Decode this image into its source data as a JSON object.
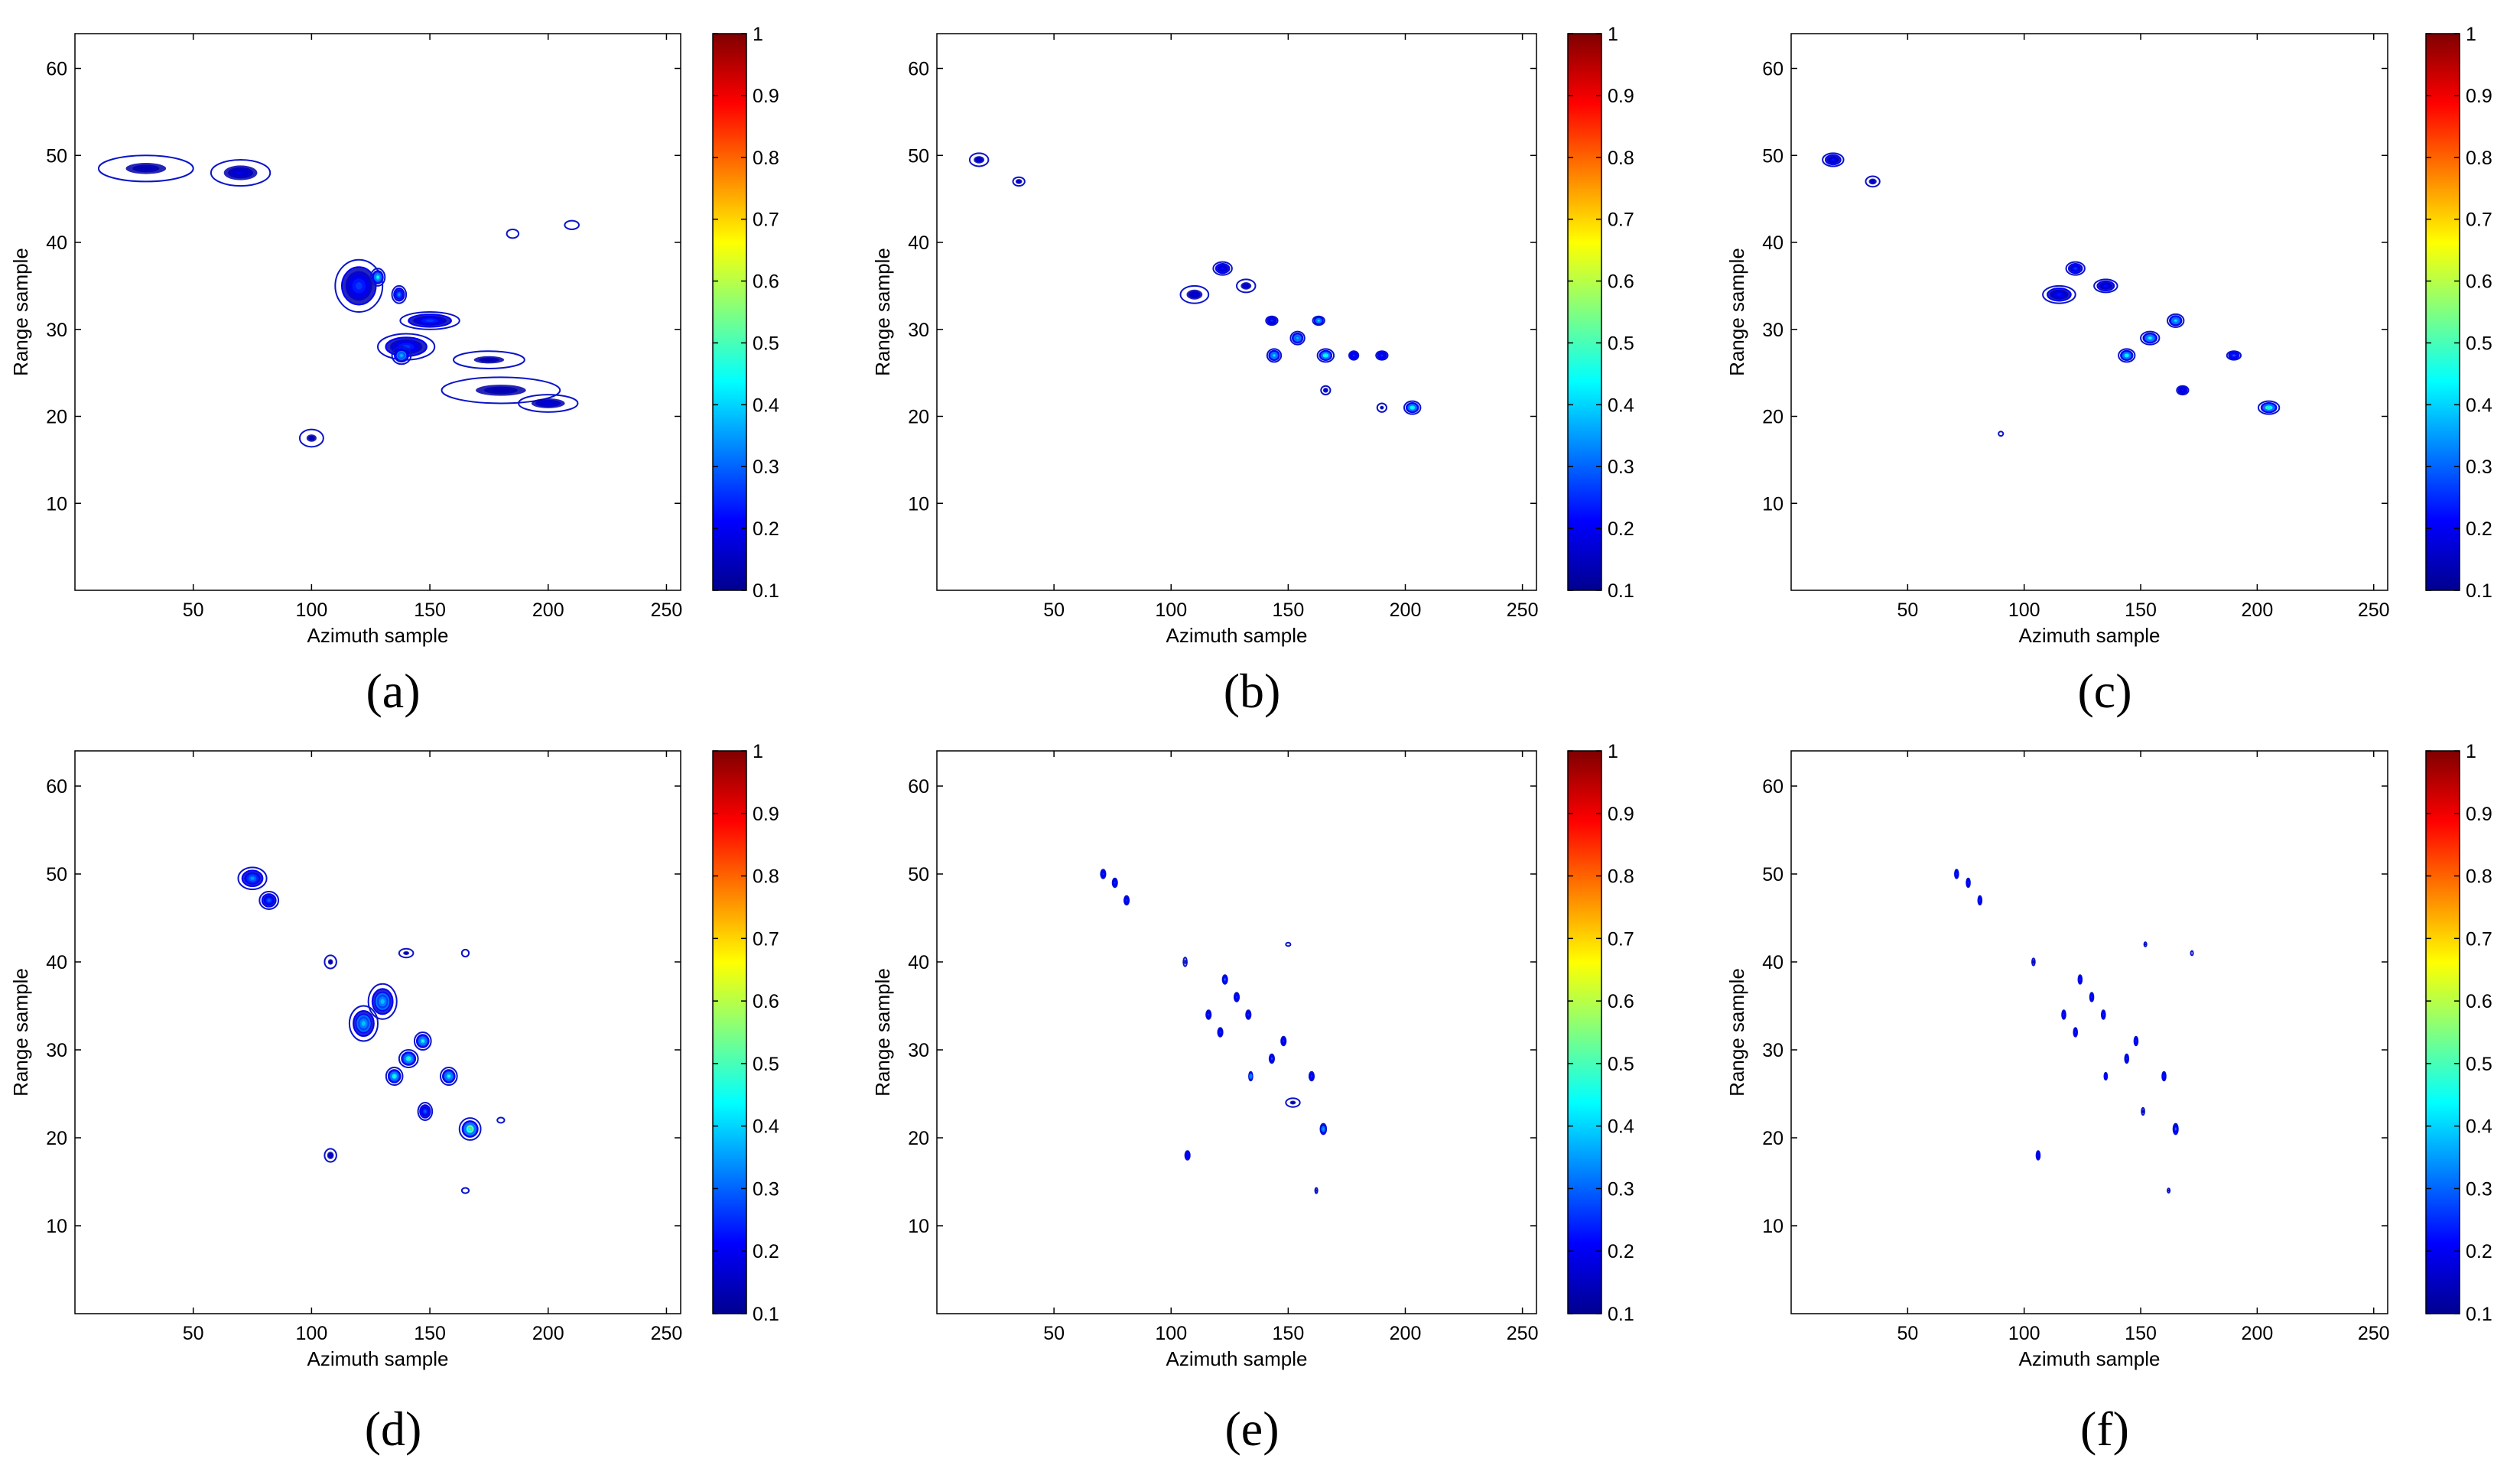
{
  "colors": {
    "contour_outer": "#0a14c8",
    "colormap": [
      "#00008f",
      "#0000ff",
      "#0080ff",
      "#00ffff",
      "#80ff80",
      "#ffff00",
      "#ff8000",
      "#ff0000",
      "#800000"
    ]
  },
  "chart_data": [
    {
      "type": "contour",
      "caption": "(a)",
      "xlabel": "Azimuth sample",
      "ylabel": "Range sample",
      "xlim": [
        0,
        256
      ],
      "ylim": [
        0,
        64
      ],
      "xticks": [
        50,
        100,
        150,
        200,
        250
      ],
      "yticks": [
        10,
        20,
        30,
        40,
        50,
        60
      ],
      "colorbar": {
        "ticks": [
          0.1,
          0.2,
          0.3,
          0.4,
          0.5,
          0.6,
          0.7,
          0.8,
          0.9,
          1
        ],
        "range": [
          0.1,
          1
        ]
      },
      "blobs": [
        {
          "x": 30,
          "y": 48.5,
          "w": 40,
          "h": 3,
          "peak": 0.15
        },
        {
          "x": 70,
          "y": 48,
          "w": 25,
          "h": 3,
          "peak": 0.2
        },
        {
          "x": 100,
          "y": 17.5,
          "w": 10,
          "h": 2,
          "peak": 0.15
        },
        {
          "x": 120,
          "y": 35,
          "w": 20,
          "h": 6,
          "peak": 0.3
        },
        {
          "x": 128,
          "y": 36,
          "w": 6,
          "h": 2,
          "peak": 0.55
        },
        {
          "x": 137,
          "y": 34,
          "w": 6,
          "h": 2,
          "peak": 0.4
        },
        {
          "x": 150,
          "y": 31,
          "w": 25,
          "h": 2,
          "peak": 0.3
        },
        {
          "x": 140,
          "y": 28,
          "w": 24,
          "h": 3,
          "peak": 0.3
        },
        {
          "x": 138,
          "y": 27,
          "w": 8,
          "h": 2,
          "peak": 0.45
        },
        {
          "x": 175,
          "y": 26.5,
          "w": 30,
          "h": 2,
          "peak": 0.15
        },
        {
          "x": 180,
          "y": 23,
          "w": 50,
          "h": 3,
          "peak": 0.15
        },
        {
          "x": 200,
          "y": 21.5,
          "w": 25,
          "h": 2,
          "peak": 0.2
        },
        {
          "x": 210,
          "y": 42,
          "w": 6,
          "h": 1,
          "peak": 0.12
        },
        {
          "x": 185,
          "y": 41,
          "w": 5,
          "h": 1,
          "peak": 0.12
        }
      ]
    },
    {
      "type": "contour",
      "caption": "(b)",
      "xlabel": "Azimuth sample",
      "ylabel": "Range sample",
      "xlim": [
        0,
        256
      ],
      "ylim": [
        0,
        64
      ],
      "xticks": [
        50,
        100,
        150,
        200,
        250
      ],
      "yticks": [
        10,
        20,
        30,
        40,
        50,
        60
      ],
      "colorbar": {
        "ticks": [
          0.1,
          0.2,
          0.3,
          0.4,
          0.5,
          0.6,
          0.7,
          0.8,
          0.9,
          1
        ],
        "range": [
          0.1,
          1
        ]
      },
      "blobs": [
        {
          "x": 18,
          "y": 49.5,
          "w": 8,
          "h": 1.5,
          "peak": 0.2
        },
        {
          "x": 35,
          "y": 47,
          "w": 5,
          "h": 1,
          "peak": 0.2
        },
        {
          "x": 110,
          "y": 34,
          "w": 12,
          "h": 2,
          "peak": 0.2
        },
        {
          "x": 122,
          "y": 37,
          "w": 8,
          "h": 1.5,
          "peak": 0.25
        },
        {
          "x": 132,
          "y": 35,
          "w": 8,
          "h": 1.5,
          "peak": 0.2
        },
        {
          "x": 143,
          "y": 31,
          "w": 5,
          "h": 1,
          "peak": 0.3
        },
        {
          "x": 163,
          "y": 31,
          "w": 5,
          "h": 1,
          "peak": 0.5
        },
        {
          "x": 154,
          "y": 29,
          "w": 6,
          "h": 1.5,
          "peak": 0.45
        },
        {
          "x": 144,
          "y": 27,
          "w": 6,
          "h": 1.5,
          "peak": 0.5
        },
        {
          "x": 166,
          "y": 27,
          "w": 7,
          "h": 1.5,
          "peak": 0.8
        },
        {
          "x": 178,
          "y": 27,
          "w": 4,
          "h": 1,
          "peak": 0.3
        },
        {
          "x": 190,
          "y": 27,
          "w": 5,
          "h": 1,
          "peak": 0.3
        },
        {
          "x": 166,
          "y": 23,
          "w": 4,
          "h": 1,
          "peak": 0.2
        },
        {
          "x": 203,
          "y": 21,
          "w": 7,
          "h": 1.5,
          "peak": 0.7
        },
        {
          "x": 190,
          "y": 21,
          "w": 4,
          "h": 1,
          "peak": 0.15
        }
      ]
    },
    {
      "type": "contour",
      "caption": "(c)",
      "xlabel": "Azimuth sample",
      "ylabel": "Range sample",
      "xlim": [
        0,
        256
      ],
      "ylim": [
        0,
        64
      ],
      "xticks": [
        50,
        100,
        150,
        200,
        250
      ],
      "yticks": [
        10,
        20,
        30,
        40,
        50,
        60
      ],
      "colorbar": {
        "ticks": [
          0.1,
          0.2,
          0.3,
          0.4,
          0.5,
          0.6,
          0.7,
          0.8,
          0.9,
          1
        ],
        "range": [
          0.1,
          1
        ]
      },
      "blobs": [
        {
          "x": 18,
          "y": 49.5,
          "w": 9,
          "h": 1.5,
          "peak": 0.25
        },
        {
          "x": 35,
          "y": 47,
          "w": 6,
          "h": 1.2,
          "peak": 0.2
        },
        {
          "x": 115,
          "y": 34,
          "w": 14,
          "h": 2,
          "peak": 0.25
        },
        {
          "x": 122,
          "y": 37,
          "w": 8,
          "h": 1.5,
          "peak": 0.3
        },
        {
          "x": 135,
          "y": 35,
          "w": 10,
          "h": 1.5,
          "peak": 0.25
        },
        {
          "x": 165,
          "y": 31,
          "w": 7,
          "h": 1.5,
          "peak": 0.5
        },
        {
          "x": 154,
          "y": 29,
          "w": 8,
          "h": 1.5,
          "peak": 0.55
        },
        {
          "x": 144,
          "y": 27,
          "w": 7,
          "h": 1.5,
          "peak": 0.6
        },
        {
          "x": 168,
          "y": 23,
          "w": 5,
          "h": 1,
          "peak": 0.25
        },
        {
          "x": 190,
          "y": 27,
          "w": 6,
          "h": 1,
          "peak": 0.35
        },
        {
          "x": 205,
          "y": 21,
          "w": 9,
          "h": 1.5,
          "peak": 0.8
        },
        {
          "x": 90,
          "y": 18,
          "w": 2,
          "h": 0.5,
          "peak": 0.12
        }
      ]
    },
    {
      "type": "contour",
      "caption": "(d)",
      "xlabel": "Azimuth sample",
      "ylabel": "Range sample",
      "xlim": [
        0,
        256
      ],
      "ylim": [
        0,
        64
      ],
      "xticks": [
        50,
        100,
        150,
        200,
        250
      ],
      "yticks": [
        10,
        20,
        30,
        40,
        50,
        60
      ],
      "colorbar": {
        "ticks": [
          0.1,
          0.2,
          0.3,
          0.4,
          0.5,
          0.6,
          0.7,
          0.8,
          0.9,
          1
        ],
        "range": [
          0.1,
          1
        ]
      },
      "blobs": [
        {
          "x": 75,
          "y": 49.5,
          "w": 12,
          "h": 2.5,
          "peak": 0.4
        },
        {
          "x": 82,
          "y": 47,
          "w": 8,
          "h": 2,
          "peak": 0.35
        },
        {
          "x": 108,
          "y": 40,
          "w": 5,
          "h": 1.5,
          "peak": 0.15
        },
        {
          "x": 130,
          "y": 35.5,
          "w": 12,
          "h": 4,
          "peak": 0.45
        },
        {
          "x": 122,
          "y": 33,
          "w": 12,
          "h": 4,
          "peak": 0.45
        },
        {
          "x": 140,
          "y": 41,
          "w": 6,
          "h": 1,
          "peak": 0.15
        },
        {
          "x": 147,
          "y": 31,
          "w": 7,
          "h": 2,
          "peak": 0.55
        },
        {
          "x": 141,
          "y": 29,
          "w": 8,
          "h": 2,
          "peak": 0.6
        },
        {
          "x": 135,
          "y": 27,
          "w": 7,
          "h": 2,
          "peak": 0.6
        },
        {
          "x": 158,
          "y": 27,
          "w": 7,
          "h": 2,
          "peak": 0.55
        },
        {
          "x": 148,
          "y": 23,
          "w": 6,
          "h": 2,
          "peak": 0.35
        },
        {
          "x": 167,
          "y": 21,
          "w": 9,
          "h": 2.5,
          "peak": 0.85
        },
        {
          "x": 108,
          "y": 18,
          "w": 5,
          "h": 1.5,
          "peak": 0.2
        },
        {
          "x": 165,
          "y": 14,
          "w": 3,
          "h": 0.6,
          "peak": 0.12
        },
        {
          "x": 165,
          "y": 41,
          "w": 3,
          "h": 0.8,
          "peak": 0.12
        },
        {
          "x": 180,
          "y": 22,
          "w": 3,
          "h": 0.6,
          "peak": 0.12
        }
      ]
    },
    {
      "type": "contour",
      "caption": "(e)",
      "xlabel": "Azimuth sample",
      "ylabel": "Range sample",
      "xlim": [
        0,
        256
      ],
      "ylim": [
        0,
        64
      ],
      "xticks": [
        50,
        100,
        150,
        200,
        250
      ],
      "yticks": [
        10,
        20,
        30,
        40,
        50,
        60
      ],
      "colorbar": {
        "ticks": [
          0.1,
          0.2,
          0.3,
          0.4,
          0.5,
          0.6,
          0.7,
          0.8,
          0.9,
          1
        ],
        "range": [
          0.1,
          1
        ]
      },
      "blobs": [
        {
          "x": 71,
          "y": 50,
          "w": 2,
          "h": 1,
          "peak": 0.3
        },
        {
          "x": 76,
          "y": 49,
          "w": 2,
          "h": 1,
          "peak": 0.3
        },
        {
          "x": 81,
          "y": 47,
          "w": 2,
          "h": 1,
          "peak": 0.3
        },
        {
          "x": 106,
          "y": 40,
          "w": 1.5,
          "h": 1,
          "peak": 0.2
        },
        {
          "x": 123,
          "y": 38,
          "w": 2,
          "h": 1,
          "peak": 0.4
        },
        {
          "x": 128,
          "y": 36,
          "w": 2,
          "h": 1,
          "peak": 0.3
        },
        {
          "x": 133,
          "y": 34,
          "w": 2,
          "h": 1,
          "peak": 0.3
        },
        {
          "x": 116,
          "y": 34,
          "w": 2,
          "h": 1,
          "peak": 0.3
        },
        {
          "x": 121,
          "y": 32,
          "w": 2,
          "h": 1,
          "peak": 0.3
        },
        {
          "x": 148,
          "y": 31,
          "w": 2,
          "h": 1,
          "peak": 0.3
        },
        {
          "x": 143,
          "y": 29,
          "w": 2,
          "h": 1,
          "peak": 0.35
        },
        {
          "x": 134,
          "y": 27,
          "w": 1.5,
          "h": 1,
          "peak": 0.45
        },
        {
          "x": 160,
          "y": 27,
          "w": 2,
          "h": 1,
          "peak": 0.3
        },
        {
          "x": 152,
          "y": 24,
          "w": 6,
          "h": 1,
          "peak": 0.15
        },
        {
          "x": 165,
          "y": 21,
          "w": 2.5,
          "h": 1.2,
          "peak": 0.45
        },
        {
          "x": 107,
          "y": 18,
          "w": 2,
          "h": 1,
          "peak": 0.25
        },
        {
          "x": 162,
          "y": 14,
          "w": 1,
          "h": 0.6,
          "peak": 0.15
        },
        {
          "x": 150,
          "y": 42,
          "w": 2,
          "h": 0.4,
          "peak": 0.12
        }
      ]
    },
    {
      "type": "contour",
      "caption": "(f)",
      "xlabel": "Azimuth sample",
      "ylabel": "Range sample",
      "xlim": [
        0,
        256
      ],
      "ylim": [
        0,
        64
      ],
      "xticks": [
        50,
        100,
        150,
        200,
        250
      ],
      "yticks": [
        10,
        20,
        30,
        40,
        50,
        60
      ],
      "colorbar": {
        "ticks": [
          0.1,
          0.2,
          0.3,
          0.4,
          0.5,
          0.6,
          0.7,
          0.8,
          0.9,
          1
        ],
        "range": [
          0.1,
          1
        ]
      },
      "blobs": [
        {
          "x": 71,
          "y": 50,
          "w": 1.5,
          "h": 1,
          "peak": 0.3
        },
        {
          "x": 76,
          "y": 49,
          "w": 1.5,
          "h": 1,
          "peak": 0.3
        },
        {
          "x": 81,
          "y": 47,
          "w": 1.5,
          "h": 1,
          "peak": 0.3
        },
        {
          "x": 104,
          "y": 40,
          "w": 1.2,
          "h": 0.8,
          "peak": 0.2
        },
        {
          "x": 124,
          "y": 38,
          "w": 1.5,
          "h": 1,
          "peak": 0.3
        },
        {
          "x": 129,
          "y": 36,
          "w": 1.5,
          "h": 1,
          "peak": 0.3
        },
        {
          "x": 134,
          "y": 34,
          "w": 1.5,
          "h": 1,
          "peak": 0.3
        },
        {
          "x": 117,
          "y": 34,
          "w": 1.5,
          "h": 1,
          "peak": 0.3
        },
        {
          "x": 122,
          "y": 32,
          "w": 1.5,
          "h": 1,
          "peak": 0.3
        },
        {
          "x": 148,
          "y": 31,
          "w": 1.5,
          "h": 1,
          "peak": 0.3
        },
        {
          "x": 144,
          "y": 29,
          "w": 1.5,
          "h": 1,
          "peak": 0.3
        },
        {
          "x": 135,
          "y": 27,
          "w": 1.2,
          "h": 0.8,
          "peak": 0.3
        },
        {
          "x": 160,
          "y": 27,
          "w": 1.5,
          "h": 1,
          "peak": 0.3
        },
        {
          "x": 151,
          "y": 23,
          "w": 1.2,
          "h": 0.8,
          "peak": 0.2
        },
        {
          "x": 165,
          "y": 21,
          "w": 2,
          "h": 1.2,
          "peak": 0.4
        },
        {
          "x": 106,
          "y": 18,
          "w": 1.5,
          "h": 1,
          "peak": 0.25
        },
        {
          "x": 162,
          "y": 14,
          "w": 1,
          "h": 0.5,
          "peak": 0.15
        },
        {
          "x": 152,
          "y": 42,
          "w": 1,
          "h": 0.5,
          "peak": 0.15
        },
        {
          "x": 172,
          "y": 41,
          "w": 1,
          "h": 0.5,
          "peak": 0.12
        }
      ]
    }
  ]
}
